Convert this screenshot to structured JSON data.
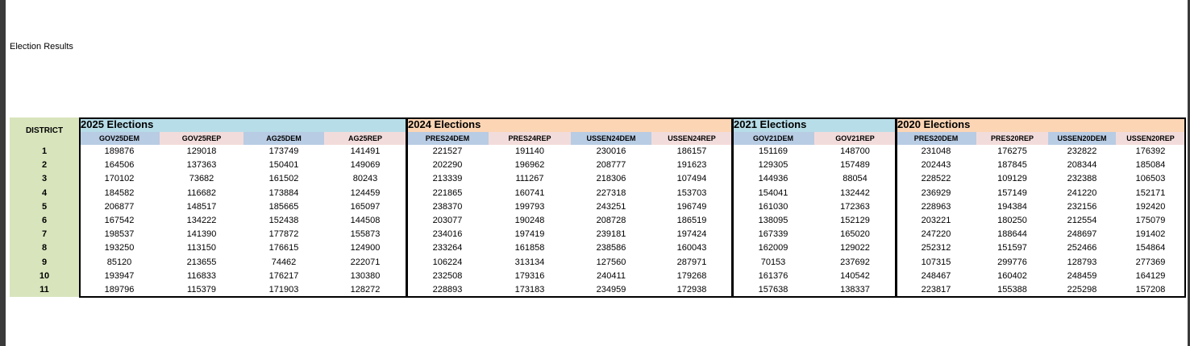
{
  "title": "Election Results",
  "table": {
    "district_header": "DISTRICT",
    "groups": [
      {
        "title": "2025 Elections",
        "columns": [
          "GOV25DEM",
          "GOV25REP",
          "AG25DEM",
          "AG25REP"
        ]
      },
      {
        "title": "2024 Elections",
        "columns": [
          "PRES24DEM",
          "PRES24REP",
          "USSEN24DEM",
          "USSEN24REP"
        ]
      },
      {
        "title": "2021 Elections",
        "columns": [
          "GOV21DEM",
          "GOV21REP"
        ]
      },
      {
        "title": "2020 Elections",
        "columns": [
          "PRES20DEM",
          "PRES20REP",
          "USSEN20DEM",
          "USSEN20REP"
        ]
      }
    ],
    "rows": [
      [
        1,
        189876,
        129018,
        173749,
        141491,
        221527,
        191140,
        230016,
        186157,
        151169,
        148700,
        231048,
        176275,
        232822,
        176392
      ],
      [
        2,
        164506,
        137363,
        150401,
        149069,
        202290,
        196962,
        208777,
        191623,
        129305,
        157489,
        202443,
        187845,
        208344,
        185084
      ],
      [
        3,
        170102,
        73682,
        161502,
        80243,
        213339,
        111267,
        218306,
        107494,
        144936,
        88054,
        228522,
        109129,
        232388,
        106503
      ],
      [
        4,
        184582,
        116682,
        173884,
        124459,
        221865,
        160741,
        227318,
        153703,
        154041,
        132442,
        236929,
        157149,
        241220,
        152171
      ],
      [
        5,
        206877,
        148517,
        185665,
        165097,
        238370,
        199793,
        243251,
        196749,
        161030,
        172363,
        228963,
        194384,
        232156,
        192420
      ],
      [
        6,
        167542,
        134222,
        152438,
        144508,
        203077,
        190248,
        208728,
        186519,
        138095,
        152129,
        203221,
        180250,
        212554,
        175079
      ],
      [
        7,
        198537,
        141390,
        177872,
        155873,
        234016,
        197419,
        239181,
        197424,
        167339,
        165020,
        247220,
        188644,
        248697,
        191402
      ],
      [
        8,
        193250,
        113150,
        176615,
        124900,
        233264,
        161858,
        238586,
        160043,
        162009,
        129022,
        252312,
        151597,
        252466,
        154864
      ],
      [
        9,
        85120,
        213655,
        74462,
        222071,
        106224,
        313134,
        127560,
        287971,
        70153,
        237692,
        107315,
        299776,
        128793,
        277369
      ],
      [
        10,
        193947,
        116833,
        176217,
        130380,
        232508,
        179316,
        240411,
        179268,
        161376,
        140542,
        248467,
        160402,
        248459,
        164129
      ],
      [
        11,
        189796,
        115379,
        171903,
        128272,
        228893,
        173183,
        234959,
        172938,
        157638,
        138337,
        223817,
        155388,
        225298,
        157208
      ]
    ]
  }
}
